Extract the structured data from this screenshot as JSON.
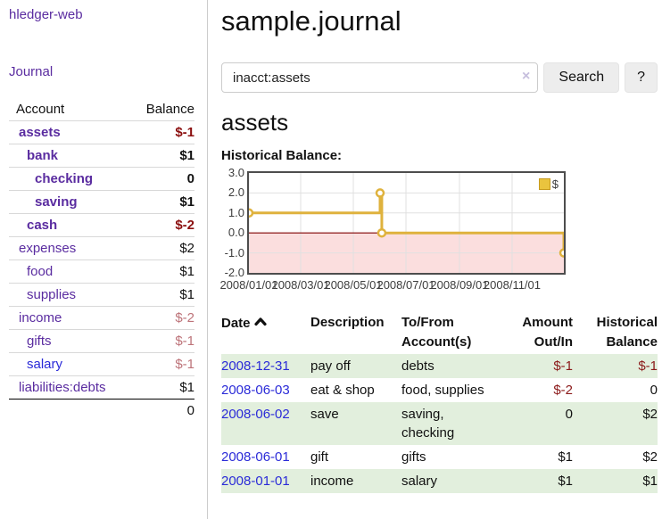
{
  "colors": {
    "link_purple": "#5a2ca0",
    "link_blue": "#2b2bd8",
    "negative_strong": "#8b0f0f",
    "negative_soft": "#bd7379",
    "table_stripe_green": "#e2efdd",
    "chart_gold": "#dfb23d",
    "chart_pink_region": "#fbdede",
    "chart_zero_line": "#800000",
    "chart_grid": "#e0e0e0"
  },
  "sidebar": {
    "app_title": "hledger-web",
    "journal_link": "Journal",
    "accounts": {
      "account_header": "Account",
      "balance_header": "Balance",
      "rows": [
        {
          "name": "assets",
          "depth": 1,
          "bold": true,
          "balance": "$-1",
          "balance_style": "neg-strong"
        },
        {
          "name": "bank",
          "depth": 2,
          "bold": true,
          "balance": "$1",
          "balance_style": ""
        },
        {
          "name": "checking",
          "depth": 3,
          "bold": true,
          "balance": "0",
          "balance_style": ""
        },
        {
          "name": "saving",
          "depth": 3,
          "bold": true,
          "balance": "$1",
          "balance_style": ""
        },
        {
          "name": "cash",
          "depth": 2,
          "bold": true,
          "balance": "$-2",
          "balance_style": "neg-strong"
        },
        {
          "name": "expenses",
          "depth": 1,
          "bold": false,
          "balance": "$2",
          "balance_style": ""
        },
        {
          "name": "food",
          "depth": 2,
          "bold": false,
          "balance": "$1",
          "balance_style": ""
        },
        {
          "name": "supplies",
          "depth": 2,
          "bold": false,
          "balance": "$1",
          "balance_style": ""
        },
        {
          "name": "income",
          "depth": 1,
          "bold": false,
          "balance": "$-2",
          "balance_style": "neg-soft"
        },
        {
          "name": "gifts",
          "depth": 2,
          "bold": false,
          "balance": "$-1",
          "balance_style": "neg-soft"
        },
        {
          "name": "salary",
          "depth": 2,
          "bold": false,
          "balance": "$-1",
          "balance_style": "neg-soft",
          "link_color": "blue"
        },
        {
          "name": "liabilities:debts",
          "depth": 1,
          "bold": false,
          "balance": "$1",
          "balance_style": ""
        }
      ],
      "total": "0"
    }
  },
  "header": {
    "title": "sample.journal"
  },
  "search": {
    "value": "inacct:assets",
    "clear_icon": "×",
    "button_label": "Search",
    "help_label": "?"
  },
  "account_page": {
    "heading": "assets",
    "chart_label": "Historical Balance:"
  },
  "chart_data": {
    "type": "line",
    "style": "step",
    "title": "Historical Balance",
    "legend": "$",
    "legend_position": "top-right",
    "grid": true,
    "ylim": [
      -2,
      3
    ],
    "x_range_days": 365,
    "series": [
      {
        "name": "$",
        "points": [
          {
            "date": "2008-01-01",
            "day": 0,
            "value": 1
          },
          {
            "date": "2008-06-01",
            "day": 152,
            "value": 2
          },
          {
            "date": "2008-06-03",
            "day": 154,
            "value": 0
          },
          {
            "date": "2008-12-31",
            "day": 365,
            "value": -1
          }
        ]
      }
    ],
    "y_ticks": [
      {
        "value": 3,
        "label": "3.0"
      },
      {
        "value": 2,
        "label": "2.0"
      },
      {
        "value": 1,
        "label": "1.0"
      },
      {
        "value": 0,
        "label": "0.0"
      },
      {
        "value": -1,
        "label": "-1.0"
      },
      {
        "value": -2,
        "label": "-2.0"
      }
    ],
    "x_ticks": [
      {
        "day": 0,
        "label": "2008/01/01"
      },
      {
        "day": 60,
        "label": "2008/03/01"
      },
      {
        "day": 121,
        "label": "2008/05/01"
      },
      {
        "day": 182,
        "label": "2008/07/01"
      },
      {
        "day": 244,
        "label": "2008/09/01"
      },
      {
        "day": 305,
        "label": "2008/11/01"
      }
    ]
  },
  "transactions": {
    "headers": {
      "date": "Date",
      "description": "Description",
      "accounts_line1": "To/From",
      "accounts_line2": "Account(s)",
      "amount_line1": "Amount",
      "amount_line2": "Out/In",
      "balance_line1": "Historical",
      "balance_line2": "Balance"
    },
    "rows": [
      {
        "date": "2008-12-31",
        "description": "pay off",
        "accounts": "debts",
        "amount": "$-1",
        "amount_neg": true,
        "balance": "$-1",
        "balance_neg": true,
        "stripe": true
      },
      {
        "date": "2008-06-03",
        "description": "eat & shop",
        "accounts": "food, supplies",
        "amount": "$-2",
        "amount_neg": true,
        "balance": "0",
        "balance_neg": false,
        "stripe": false
      },
      {
        "date": "2008-06-02",
        "description": "save",
        "accounts": "saving, checking",
        "amount": "0",
        "amount_neg": false,
        "balance": "$2",
        "balance_neg": false,
        "stripe": true
      },
      {
        "date": "2008-06-01",
        "description": "gift",
        "accounts": "gifts",
        "amount": "$1",
        "amount_neg": false,
        "balance": "$2",
        "balance_neg": false,
        "stripe": false
      },
      {
        "date": "2008-01-01",
        "description": "income",
        "accounts": "salary",
        "amount": "$1",
        "amount_neg": false,
        "balance": "$1",
        "balance_neg": false,
        "stripe": true
      }
    ]
  }
}
